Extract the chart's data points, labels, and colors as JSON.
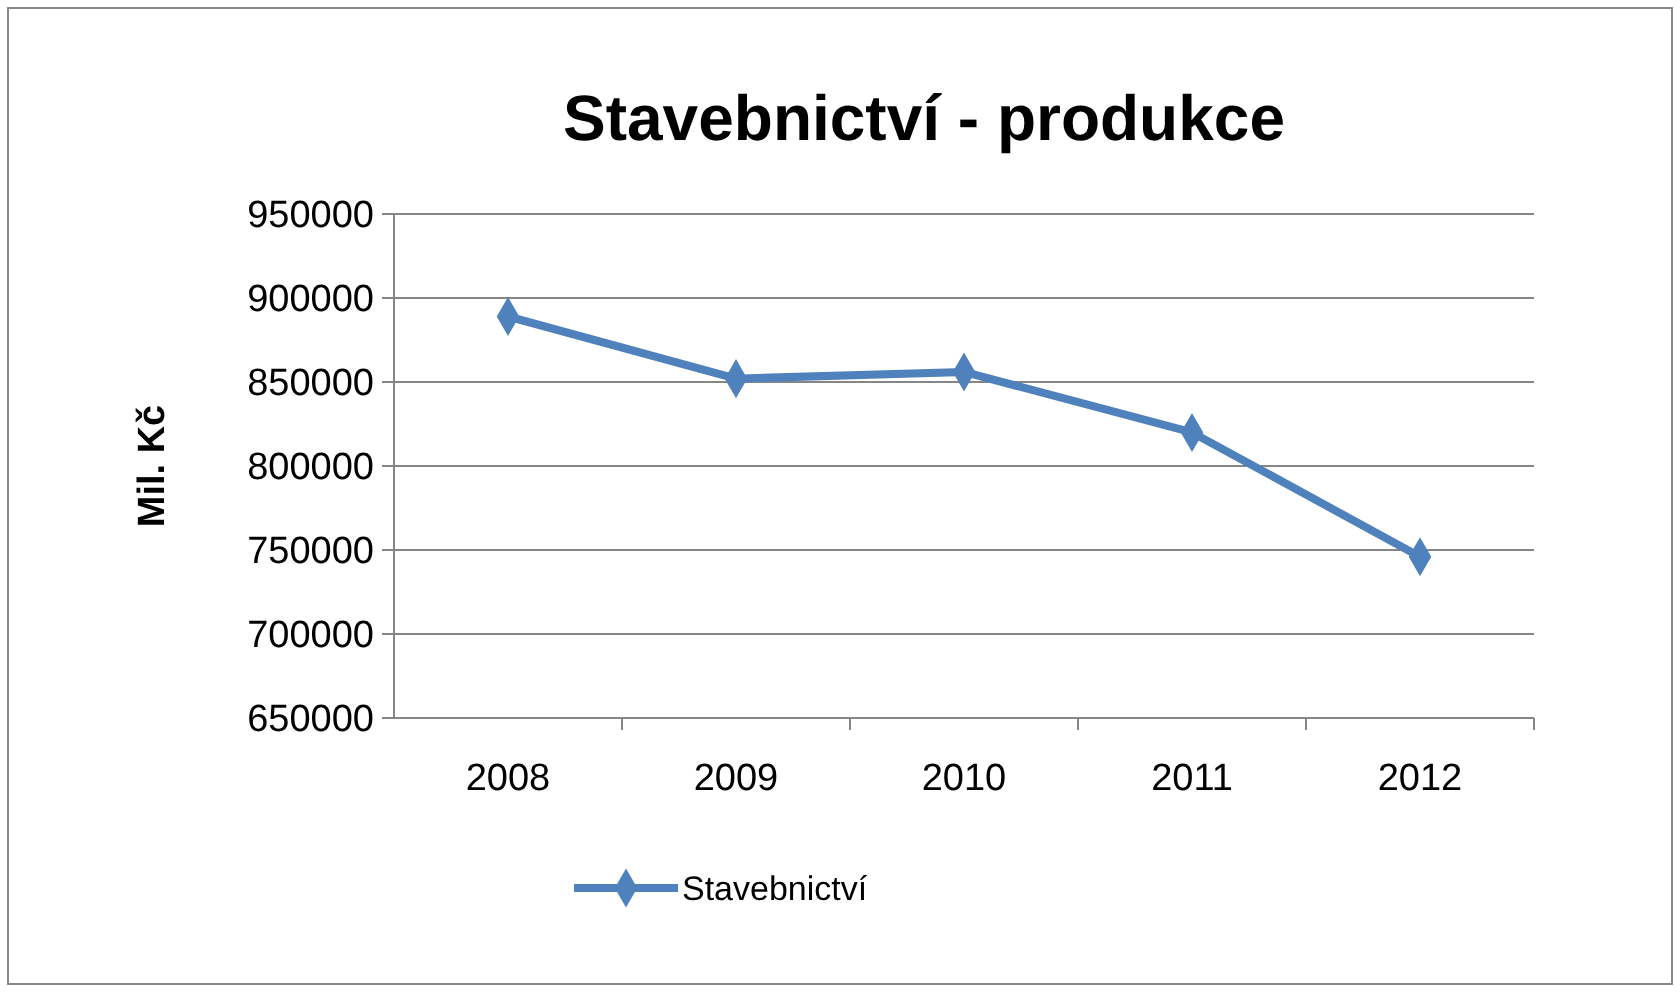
{
  "chart_data": {
    "type": "line",
    "title": "Stavebnictví - produkce",
    "ylabel": "Mil. Kč",
    "categories": [
      "2008",
      "2009",
      "2010",
      "2011",
      "2012"
    ],
    "series": [
      {
        "name": "Stavebnictví",
        "color": "#4f81bd",
        "values": [
          889000,
          852000,
          856000,
          820000,
          746000
        ]
      }
    ],
    "ylim": [
      650000,
      950000
    ],
    "yticks": [
      650000,
      700000,
      750000,
      800000,
      850000,
      900000,
      950000
    ],
    "grid": "y",
    "legend": "bottom",
    "marker": "diamond",
    "line_style": "solid"
  }
}
